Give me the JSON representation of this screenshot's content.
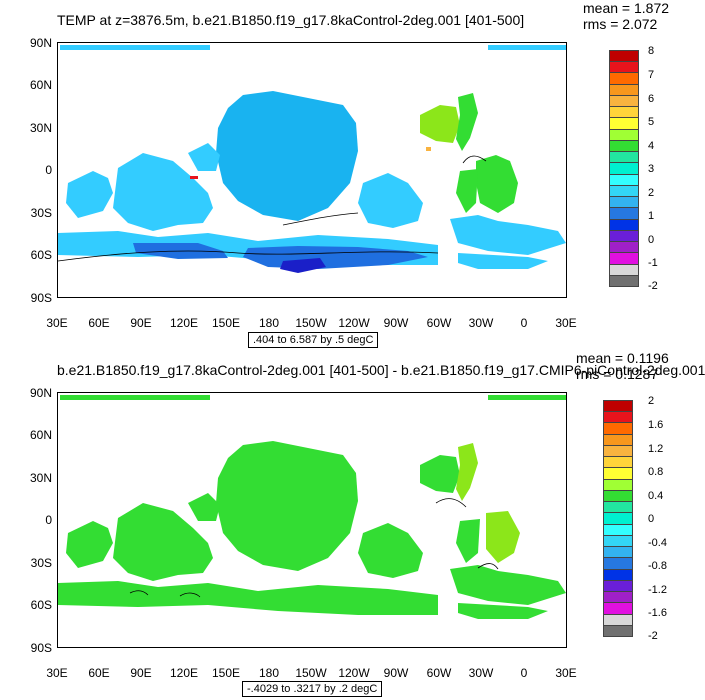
{
  "panels": [
    {
      "title": "TEMP at z=3876.5m, b.e21.B1850.f19_g17.8kaControl-2deg.001 [401-500]",
      "mean": "mean = 1.872",
      "rms": "rms = 2.072",
      "range_label": ".404 to 6.587 by .5 degC",
      "y_ticks": [
        "90N",
        "60N",
        "30N",
        "0",
        "30S",
        "60S",
        "90S"
      ],
      "x_ticks": [
        "30E",
        "60E",
        "90E",
        "120E",
        "150E",
        "180",
        "150W",
        "120W",
        "90W",
        "60W",
        "30W",
        "0",
        "30E"
      ],
      "colorbar_labels": [
        "8",
        "7",
        "6",
        "5",
        "4",
        "3",
        "2",
        "1",
        "0",
        "-1",
        "-2"
      ],
      "colorbar_colors": [
        "#c00000",
        "#e8141c",
        "#ff6a00",
        "#f8971d",
        "#f9b33f",
        "#ffd43a",
        "#ffff33",
        "#a0ff34",
        "#33dd33",
        "#22e6a0",
        "#00f0d0",
        "#33ffff",
        "#33d6f5",
        "#33b3f0",
        "#2678e0",
        "#0033e6",
        "#6a1fd8",
        "#a020c8",
        "#e010e0",
        "#d8d8d8",
        "#707070"
      ]
    },
    {
      "title": "b.e21.B1850.f19_g17.8kaControl-2deg.001 [401-500] - b.e21.B1850.f19_g17.CMIP6-piControl-2deg.001",
      "mean": "mean = 0.1196",
      "rms": "rms = 0.1287",
      "range_label": "-.4029 to .3217 by .2 degC",
      "y_ticks": [
        "90N",
        "60N",
        "30N",
        "0",
        "30S",
        "60S",
        "90S"
      ],
      "x_ticks": [
        "30E",
        "60E",
        "90E",
        "120E",
        "150E",
        "180",
        "150W",
        "120W",
        "90W",
        "60W",
        "30W",
        "0",
        "30E"
      ],
      "colorbar_labels": [
        "2",
        "1.6",
        "1.2",
        "0.8",
        "0.4",
        "0",
        "-0.4",
        "-0.8",
        "-1.2",
        "-1.6",
        "-2"
      ],
      "colorbar_colors": [
        "#c00000",
        "#e8141c",
        "#ff6a00",
        "#f8971d",
        "#f9b33f",
        "#ffd43a",
        "#ffff33",
        "#a0ff34",
        "#33dd33",
        "#22e6a0",
        "#00f0d0",
        "#33ffff",
        "#33d6f5",
        "#33b3f0",
        "#2678e0",
        "#0033e6",
        "#6a1fd8",
        "#a020c8",
        "#e010e0",
        "#d8d8d8",
        "#707070"
      ]
    }
  ],
  "colors": {
    "top_main": "#19b3f0",
    "top_light": "#33ccff",
    "top_dark": "#1f6fe0",
    "top_darkest": "#1a1fc8",
    "top_green": "#33dd33",
    "top_lime": "#8ce61a",
    "bottom_main": "#33dd33",
    "bottom_lime": "#8ce61a"
  }
}
